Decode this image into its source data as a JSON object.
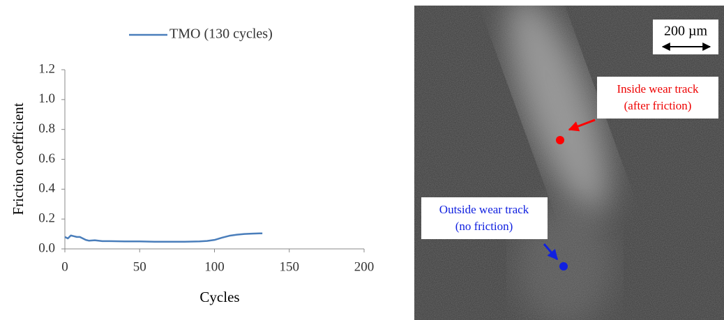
{
  "chart_data": {
    "type": "line",
    "x": [
      0,
      2,
      4,
      6,
      8,
      10,
      12,
      14,
      16,
      20,
      25,
      30,
      40,
      50,
      60,
      70,
      80,
      90,
      95,
      100,
      105,
      110,
      115,
      120,
      125,
      130,
      132
    ],
    "series": [
      {
        "name": "TMO (130 cycles)",
        "color": "#4a7ebb",
        "values": [
          0.08,
          0.07,
          0.09,
          0.085,
          0.08,
          0.08,
          0.07,
          0.06,
          0.055,
          0.058,
          0.052,
          0.052,
          0.05,
          0.05,
          0.048,
          0.048,
          0.048,
          0.05,
          0.053,
          0.06,
          0.075,
          0.088,
          0.095,
          0.1,
          0.102,
          0.104,
          0.104
        ]
      }
    ],
    "xlabel": "Cycles",
    "ylabel": "Friction coefficient",
    "xlim": [
      0,
      200
    ],
    "xticks": [
      0,
      50,
      100,
      150,
      200
    ],
    "ylim": [
      0,
      1.2
    ],
    "yticks": [
      {
        "value": 0,
        "label": "0.0"
      },
      0.2,
      0.4,
      0.6,
      0.8,
      {
        "value": 1,
        "label": "1.0"
      },
      1.2
    ],
    "grid": false
  },
  "image": {
    "scale_bar": "200 µm",
    "inside_label": [
      "Inside wear track",
      "(after friction)"
    ],
    "outside_label": [
      "Outside wear track",
      "(no friction)"
    ]
  }
}
